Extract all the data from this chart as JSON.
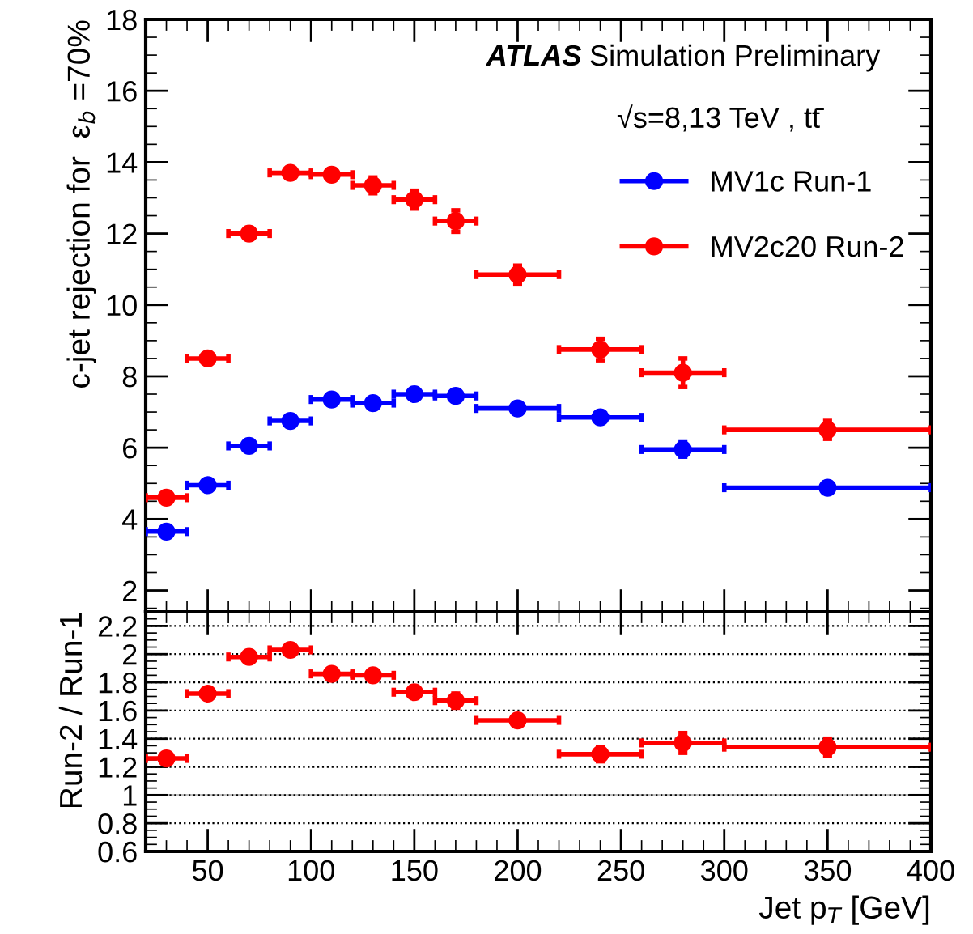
{
  "chart_data": [
    {
      "type": "scatter",
      "ylabel": "c-jet rejection for  ε$_{b}$ =70%",
      "annotations": [
        "ATLAS",
        "Simulation Preliminary",
        "√s=8,13 TeV , tt̄"
      ],
      "xlim": [
        20,
        400
      ],
      "xticks": [
        50,
        100,
        150,
        200,
        250,
        300,
        350,
        400
      ],
      "ylim": [
        1.4,
        18
      ],
      "yticks": [
        2,
        4,
        6,
        8,
        10,
        12,
        14,
        16,
        18
      ],
      "tick_labels": "y",
      "legend": "top right",
      "marker": "circle",
      "grid": false,
      "series": [
        {
          "name": "MV1c Run-1",
          "color": "#0000ff",
          "x": [
            30,
            50,
            70,
            90,
            110,
            130,
            150,
            170,
            200,
            240,
            280,
            350
          ],
          "values": [
            3.65,
            4.95,
            6.05,
            6.75,
            7.35,
            7.25,
            7.5,
            7.45,
            7.1,
            6.85,
            5.95,
            4.88
          ],
          "errors": [
            0.1,
            0.1,
            0.1,
            0.1,
            0.12,
            0.12,
            0.12,
            0.15,
            0.12,
            0.15,
            0.2,
            0.12
          ],
          "xerrors": [
            10,
            10,
            10,
            10,
            10,
            10,
            10,
            10,
            20,
            20,
            20,
            50
          ]
        },
        {
          "name": "MV2c20 Run-2",
          "color": "#ff0000",
          "x": [
            30,
            50,
            70,
            90,
            110,
            130,
            150,
            170,
            200,
            240,
            280,
            350
          ],
          "values": [
            4.6,
            8.5,
            12.0,
            13.7,
            13.65,
            13.35,
            12.95,
            12.35,
            10.85,
            8.75,
            8.1,
            6.5
          ],
          "errors": [
            0.1,
            0.12,
            0.12,
            0.15,
            0.15,
            0.22,
            0.25,
            0.3,
            0.25,
            0.3,
            0.4,
            0.25
          ],
          "xerrors": [
            10,
            10,
            10,
            10,
            10,
            10,
            10,
            10,
            20,
            20,
            20,
            50
          ]
        }
      ]
    },
    {
      "type": "scatter",
      "xlabel": "Jet p$_{T}$ [GeV]",
      "ylabel": "Run-2 / Run-1",
      "xlim": [
        20,
        400
      ],
      "xticks": [
        50,
        100,
        150,
        200,
        250,
        300,
        350,
        400
      ],
      "ylim": [
        0.6,
        2.3
      ],
      "yticks": [
        {
          "value": 0.6,
          "label": "0.6"
        },
        {
          "value": 0.8,
          "label": "0.8"
        },
        1,
        {
          "value": 1.2,
          "label": "1.2"
        },
        {
          "value": 1.4,
          "label": "1.4"
        },
        {
          "value": 1.6,
          "label": "1.6"
        },
        {
          "value": 1.8,
          "label": "1.8"
        },
        2,
        {
          "value": 2.2,
          "label": "2.2"
        }
      ],
      "grid": "y",
      "line_style": "dotted",
      "marker": "circle",
      "ref_lines": [
        {
          "axis": "y",
          "value": 1,
          "color": "#c0c0c0",
          "line_style": "solid"
        }
      ],
      "series": [
        {
          "color": "#ff0000",
          "x": [
            30,
            50,
            70,
            90,
            110,
            130,
            150,
            170,
            200,
            240,
            280,
            350
          ],
          "values": [
            1.26,
            1.72,
            1.98,
            2.03,
            1.86,
            1.85,
            1.73,
            1.67,
            1.53,
            1.29,
            1.37,
            1.34
          ],
          "errors": [
            0.02,
            0.02,
            0.02,
            0.02,
            0.02,
            0.02,
            0.03,
            0.05,
            0.03,
            0.05,
            0.07,
            0.06
          ],
          "xerrors": [
            10,
            10,
            10,
            10,
            10,
            10,
            10,
            10,
            20,
            20,
            20,
            50
          ]
        }
      ]
    }
  ]
}
